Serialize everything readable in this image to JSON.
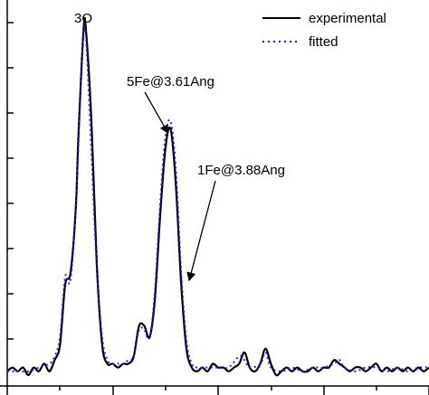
{
  "chart_data": {
    "type": "line",
    "title": "",
    "xlabel": "",
    "ylabel": "",
    "legend_position": "top-right",
    "grid": false,
    "xlim": [
      0.0,
      8.0
    ],
    "ylim": [
      0.0,
      1.0
    ],
    "series": [
      {
        "name": "experimental",
        "color": "#000000",
        "style": "solid",
        "x": [
          0.0,
          0.1,
          0.2,
          0.3,
          0.4,
          0.5,
          0.6,
          0.7,
          0.8,
          0.9,
          1.0,
          1.1,
          1.2,
          1.3,
          1.35,
          1.45,
          1.5,
          1.6,
          1.7,
          1.8,
          1.9,
          2.0,
          2.1,
          2.2,
          2.3,
          2.4,
          2.5,
          2.6,
          2.7,
          2.8,
          2.9,
          3.0,
          3.1,
          3.2,
          3.3,
          3.4,
          3.5,
          3.6,
          3.7,
          3.8,
          3.9,
          4.0,
          4.1,
          4.2,
          4.3,
          4.4,
          4.5,
          4.6,
          4.7,
          4.8,
          4.9,
          5.0,
          5.1,
          5.2,
          5.3,
          5.4,
          5.5,
          5.6,
          5.7,
          5.8,
          5.9,
          6.0,
          6.1,
          6.2,
          6.3,
          6.4,
          6.5,
          6.6,
          6.7,
          6.8,
          6.9,
          7.0,
          7.1,
          7.2,
          7.3,
          7.4,
          7.5,
          7.6,
          7.7,
          7.8,
          7.9,
          8.0
        ],
        "y": [
          0.01,
          0.02,
          0.01,
          0.02,
          0.0,
          0.02,
          0.01,
          0.03,
          0.01,
          0.04,
          0.08,
          0.24,
          0.27,
          0.44,
          0.63,
          0.92,
          0.9,
          0.66,
          0.29,
          0.08,
          0.03,
          0.03,
          0.02,
          0.03,
          0.03,
          0.05,
          0.13,
          0.13,
          0.1,
          0.2,
          0.42,
          0.6,
          0.65,
          0.5,
          0.24,
          0.07,
          0.02,
          0.01,
          0.02,
          0.01,
          0.03,
          0.02,
          0.02,
          0.01,
          0.02,
          0.03,
          0.06,
          0.02,
          0.01,
          0.03,
          0.07,
          0.03,
          0.0,
          0.01,
          0.02,
          0.01,
          0.02,
          0.01,
          0.01,
          0.02,
          0.01,
          0.02,
          0.02,
          0.04,
          0.03,
          0.02,
          0.01,
          0.02,
          0.02,
          0.01,
          0.02,
          0.03,
          0.01,
          0.02,
          0.01,
          0.02,
          0.01,
          0.02,
          0.01,
          0.02,
          0.01,
          0.02
        ]
      },
      {
        "name": "fitted",
        "color": "#1a1aff",
        "style": "dotted",
        "x": [
          0.0,
          0.2,
          0.4,
          0.6,
          0.8,
          0.9,
          1.0,
          1.1,
          1.2,
          1.3,
          1.4,
          1.45,
          1.5,
          1.6,
          1.7,
          1.8,
          1.9,
          2.0,
          2.1,
          2.2,
          2.3,
          2.4,
          2.5,
          2.6,
          2.7,
          2.8,
          2.9,
          3.0,
          3.1,
          3.2,
          3.3,
          3.4,
          3.5,
          3.6,
          3.8,
          4.0,
          4.2,
          4.4,
          4.5,
          4.6,
          4.8,
          4.9,
          5.0,
          5.2,
          5.4,
          5.6,
          5.8,
          6.0,
          6.2,
          6.3,
          6.4,
          6.6,
          6.8,
          7.0,
          7.2,
          7.4,
          7.6,
          7.8,
          8.0
        ],
        "y": [
          0.01,
          0.01,
          0.01,
          0.02,
          0.03,
          0.05,
          0.1,
          0.26,
          0.25,
          0.45,
          0.78,
          0.91,
          0.88,
          0.58,
          0.28,
          0.1,
          0.04,
          0.03,
          0.03,
          0.03,
          0.04,
          0.05,
          0.12,
          0.12,
          0.1,
          0.22,
          0.45,
          0.63,
          0.67,
          0.54,
          0.27,
          0.09,
          0.03,
          0.02,
          0.02,
          0.02,
          0.02,
          0.05,
          0.04,
          0.02,
          0.03,
          0.06,
          0.02,
          0.01,
          0.02,
          0.01,
          0.02,
          0.02,
          0.03,
          0.04,
          0.02,
          0.01,
          0.02,
          0.02,
          0.01,
          0.02,
          0.01,
          0.02,
          0.02
        ]
      }
    ],
    "annotations": [
      {
        "id": "ann-3o",
        "text": "3O"
      },
      {
        "id": "ann-5fe",
        "text": "5Fe@3.61Ang",
        "arrow_target": {
          "x": 3.05,
          "y": 0.64
        }
      },
      {
        "id": "ann-1fe",
        "text": "1Fe@3.88Ang",
        "arrow_target": {
          "x": 3.45,
          "y": 0.25
        }
      }
    ]
  }
}
